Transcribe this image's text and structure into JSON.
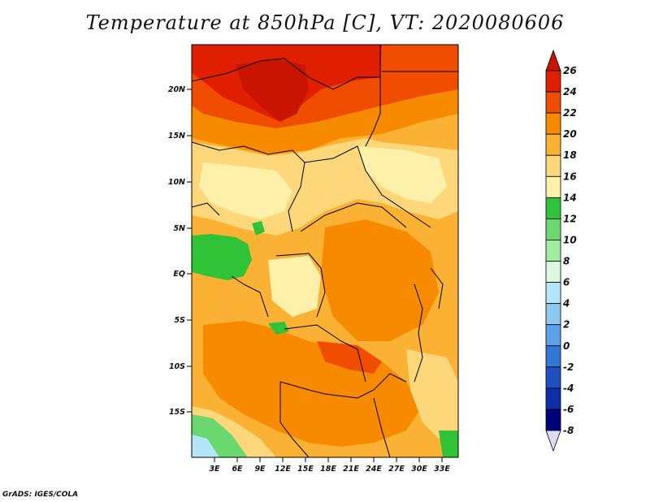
{
  "title": "Temperature at 850hPa [C], VT: 2020080606",
  "credit": "GrADS: IGES/COLA",
  "lat_labels": [
    "20N",
    "15N",
    "10N",
    "5N",
    "EQ",
    "5S",
    "10S",
    "15S"
  ],
  "lon_labels": [
    "3E",
    "6E",
    "9E",
    "12E",
    "15E",
    "18E",
    "21E",
    "24E",
    "27E",
    "30E",
    "33E"
  ],
  "colorbar": {
    "labels": [
      "26",
      "24",
      "22",
      "20",
      "18",
      "16",
      "14",
      "12",
      "10",
      "8",
      "6",
      "4",
      "2",
      "0",
      "-2",
      "-4",
      "-6",
      "-8"
    ],
    "colors": [
      "#a50000",
      "#e01e00",
      "#f04d00",
      "#f88a00",
      "#fbb133",
      "#fdd77a",
      "#fef0a8",
      "#30c338",
      "#6ad86e",
      "#a0ecA0",
      "#dcf8e0",
      "#b4e6fa",
      "#8cc8f0",
      "#5aa0eb",
      "#3278d6",
      "#1e50c3",
      "#0f2faa",
      "#00007a"
    ],
    "top_triangle_color": "#c81400",
    "bottom_triangle_color": "#dcdcf8"
  },
  "regions": {
    "hot_north": "#e01e00",
    "very_hot_core": "#c81400",
    "warm": "#f88a00",
    "mild": "#fbb133",
    "cool": "#fdd77a",
    "cooler": "#fef0a8",
    "green": "#30c338",
    "light_green": "#6ad86e",
    "ocean_cool": "#b4e6fa"
  }
}
